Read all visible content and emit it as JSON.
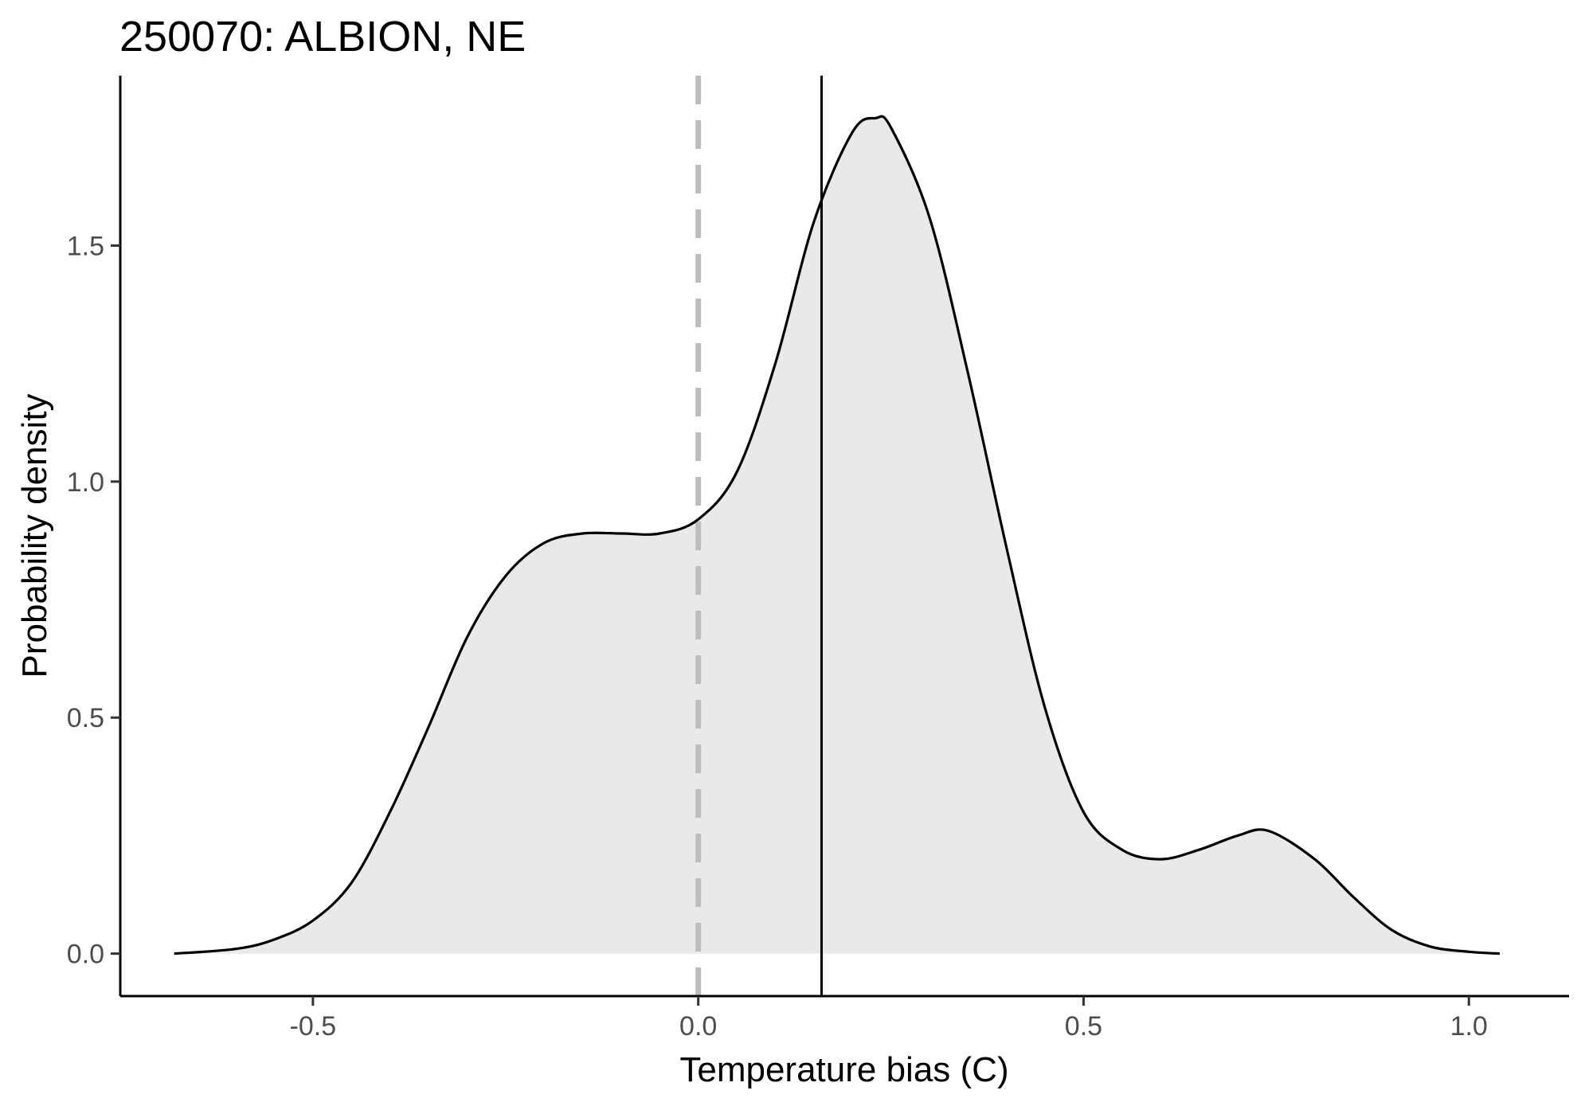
{
  "chart_data": {
    "type": "area",
    "title": "250070: ALBION, NE",
    "xlabel": "Temperature bias (C)",
    "ylabel": "Probability density",
    "xlim": [
      -0.75,
      1.13
    ],
    "ylim": [
      -0.09,
      1.86
    ],
    "x_ticks": [
      {
        "value": -0.5,
        "label": "-0.5"
      },
      {
        "value": 0.0,
        "label": "0.0"
      },
      {
        "value": 0.5,
        "label": "0.5"
      },
      {
        "value": 1.0,
        "label": "1.0"
      }
    ],
    "y_ticks": [
      {
        "value": 0.0,
        "label": "0.0"
      },
      {
        "value": 0.5,
        "label": "0.5"
      },
      {
        "value": 1.0,
        "label": "1.0"
      },
      {
        "value": 1.5,
        "label": "1.5"
      }
    ],
    "grid": false,
    "fill_color": "#e8e9e8",
    "line_color": "#000000",
    "reference_lines": [
      {
        "x": 0.0,
        "style": "dashed",
        "color": "#bdbdbd"
      },
      {
        "x": 0.16,
        "style": "solid",
        "color": "#000000"
      }
    ],
    "series": [
      {
        "x": [
          -0.68,
          -0.6,
          -0.55,
          -0.5,
          -0.45,
          -0.4,
          -0.35,
          -0.3,
          -0.25,
          -0.2,
          -0.15,
          -0.1,
          -0.05,
          0.0,
          0.05,
          0.1,
          0.15,
          0.2,
          0.23,
          0.25,
          0.3,
          0.35,
          0.4,
          0.45,
          0.5,
          0.55,
          0.6,
          0.65,
          0.7,
          0.74,
          0.8,
          0.85,
          0.9,
          0.95,
          1.0,
          1.04
        ],
        "y": [
          0.0,
          0.01,
          0.03,
          0.07,
          0.15,
          0.3,
          0.48,
          0.67,
          0.8,
          0.87,
          0.89,
          0.89,
          0.89,
          0.92,
          1.02,
          1.25,
          1.55,
          1.74,
          1.77,
          1.75,
          1.56,
          1.23,
          0.86,
          0.52,
          0.3,
          0.22,
          0.2,
          0.22,
          0.25,
          0.26,
          0.2,
          0.12,
          0.05,
          0.015,
          0.004,
          0.0
        ]
      }
    ]
  }
}
